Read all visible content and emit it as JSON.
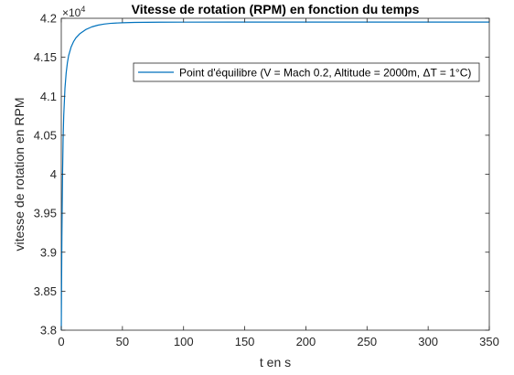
{
  "chart_data": {
    "type": "line",
    "title": "Vitesse de rotation (RPM) en fonction du temps",
    "xlabel": "t en s",
    "ylabel": "vitesse de rotation en RPM",
    "xlim": [
      0,
      350
    ],
    "ylim": [
      38000,
      42000
    ],
    "x_ticks": [
      0,
      50,
      100,
      150,
      200,
      250,
      300,
      350
    ],
    "x_tick_labels": [
      "0",
      "50",
      "100",
      "150",
      "200",
      "250",
      "300",
      "350"
    ],
    "y_ticks": [
      38000,
      38500,
      39000,
      39500,
      40000,
      40500,
      41000,
      41500,
      42000
    ],
    "y_tick_labels": [
      "3.8",
      "3.85",
      "3.9",
      "3.95",
      "4",
      "4.05",
      "4.1",
      "4.15",
      "4.2"
    ],
    "y_multiplier": {
      "base": "×10",
      "exponent": "4"
    },
    "grid": false,
    "legend_placement": "top-right",
    "series": [
      {
        "name": "Point d'équilibre (V = Mach 0.2, Altitude = 2000m, ΔT = 1°C)",
        "color": "#0072BD",
        "x": [
          0,
          0.5,
          1,
          1.5,
          2,
          3,
          4,
          5,
          6,
          8,
          10,
          12,
          15,
          20,
          25,
          30,
          35,
          40,
          50,
          60,
          80,
          100,
          150,
          200,
          250,
          300,
          350
        ],
        "y": [
          38000,
          39200,
          39950,
          40450,
          40750,
          41100,
          41300,
          41430,
          41520,
          41630,
          41700,
          41750,
          41800,
          41855,
          41890,
          41912,
          41926,
          41935,
          41943,
          41947,
          41950,
          41951,
          41952,
          41952,
          41952,
          41952,
          41952
        ]
      }
    ]
  }
}
